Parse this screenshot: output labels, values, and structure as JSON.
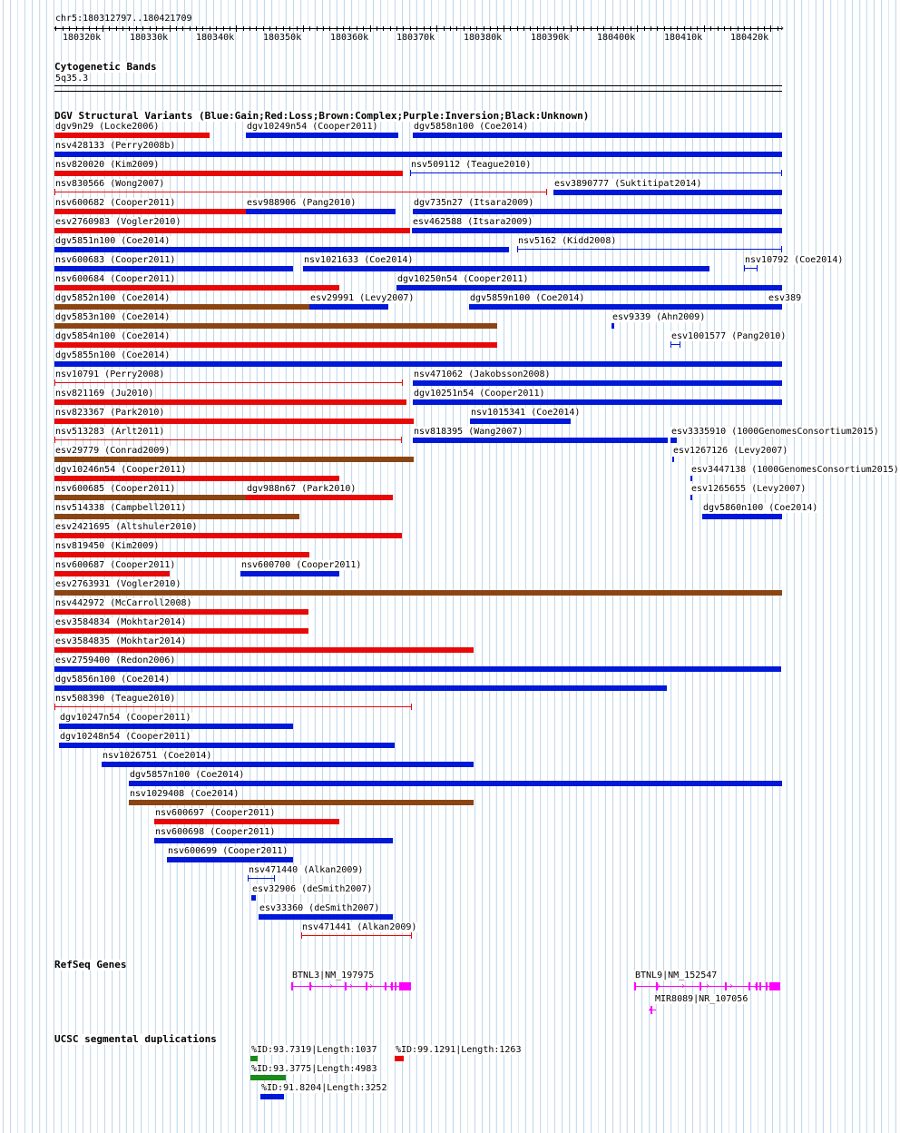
{
  "ruler": {
    "region": "chr5:180312797..180421709",
    "start": 180312797,
    "end": 180421709,
    "ticks": [
      "180320k",
      "180330k",
      "180340k",
      "180350k",
      "180360k",
      "180370k",
      "180380k",
      "180390k",
      "180400k",
      "180410k",
      "180420k"
    ]
  },
  "tracks": {
    "cytobands": {
      "title": "Cytogenetic Bands",
      "band": "5q35.3"
    },
    "dgv": {
      "title": "DGV Structural Variants (Blue:Gain;Red:Loss;Brown:Complex;Purple:Inversion;Black:Unknown)"
    },
    "refseq": {
      "title": "RefSeq Genes"
    },
    "segdups": {
      "title": "UCSC segmental duplications"
    }
  },
  "colors": {
    "gain": "#0018d8",
    "loss": "#e80808",
    "complex": "#8b4513",
    "gene": "#ff00ff",
    "sd_green": "#1a8a1a",
    "grid": "#bfd8ec"
  },
  "variants": [
    {
      "label": "dgv9n29 (Locke2006)",
      "start": 180312797,
      "end": 180336000,
      "type": "loss",
      "row": 0
    },
    {
      "label": "dgv10249n54 (Cooper2011)",
      "start": 180341500,
      "end": 180364300,
      "type": "gain",
      "row": 0
    },
    {
      "label": "dgv5858n100 (Coe2014)",
      "start": 180366500,
      "end": 180421709,
      "type": "gain",
      "row": 0
    },
    {
      "label": "nsv428133 (Perry2008b)",
      "start": 180312797,
      "end": 180421709,
      "type": "gain",
      "row": 1
    },
    {
      "label": "nsv820020 (Kim2009)",
      "start": 180312797,
      "end": 180365000,
      "type": "loss",
      "row": 2
    },
    {
      "label": "nsv509112 (Teague2010)",
      "start": 180366000,
      "end": 180421709,
      "type": "gain",
      "row": 2,
      "thin": true
    },
    {
      "label": "nsv830566 (Wong2007)",
      "start": 180312797,
      "end": 180386500,
      "type": "loss",
      "row": 3,
      "thin": true
    },
    {
      "label": "esv3890777 (Suktitipat2014)",
      "start": 180387500,
      "end": 180421709,
      "type": "gain",
      "row": 3
    },
    {
      "label": "nsv600682 (Cooper2011)",
      "start": 180312797,
      "end": 180341500,
      "type": "loss",
      "row": 4
    },
    {
      "label": "esv988906 (Pang2010)",
      "start": 180341500,
      "end": 180363800,
      "type": "gain",
      "row": 4
    },
    {
      "label": "dgv735n27 (Itsara2009)",
      "start": 180366500,
      "end": 180421709,
      "type": "gain",
      "row": 4
    },
    {
      "label": "esv2760983 (Vogler2010)",
      "start": 180312797,
      "end": 180366000,
      "type": "loss",
      "row": 5
    },
    {
      "label": "esv462588 (Itsara2009)",
      "start": 180366300,
      "end": 180421709,
      "type": "gain",
      "row": 5
    },
    {
      "label": "dgv5851n100 (Coe2014)",
      "start": 180312797,
      "end": 180380800,
      "type": "gain",
      "row": 6
    },
    {
      "label": "nsv5162 (Kidd2008)",
      "start": 180382000,
      "end": 180421709,
      "type": "gain",
      "row": 6,
      "thin": true
    },
    {
      "label": "nsv600683 (Cooper2011)",
      "start": 180312797,
      "end": 180348500,
      "type": "gain",
      "row": 7
    },
    {
      "label": "nsv1021633 (Coe2014)",
      "start": 180350000,
      "end": 180410800,
      "type": "gain",
      "row": 7
    },
    {
      "label": "nsv10792 (Coe2014)",
      "start": 180416000,
      "end": 180418000,
      "type": "gain",
      "row": 7,
      "thin": true
    },
    {
      "label": "nsv600684 (Cooper2011)",
      "start": 180312797,
      "end": 180355500,
      "type": "loss",
      "row": 8
    },
    {
      "label": "dgv10250n54 (Cooper2011)",
      "start": 180364000,
      "end": 180421709,
      "type": "gain",
      "row": 8
    },
    {
      "label": "dgv5852n100 (Coe2014)",
      "start": 180312797,
      "end": 180350900,
      "type": "complex",
      "row": 9
    },
    {
      "label": "esv29991 (Levy2007)",
      "start": 180350900,
      "end": 180362800,
      "type": "gain",
      "row": 9
    },
    {
      "label": "dgv5859n100 (Coe2014)",
      "start": 180374900,
      "end": 180421709,
      "type": "gain",
      "row": 9
    },
    {
      "label": "esv389",
      "start": 180419500,
      "end": 180421709,
      "type": "gain",
      "row": 9
    },
    {
      "label": "dgv5853n100 (Coe2014)",
      "start": 180312797,
      "end": 180379000,
      "type": "complex",
      "row": 10
    },
    {
      "label": "esv9339 (Ahn2009)",
      "start": 180396200,
      "end": 180396600,
      "type": "gain",
      "row": 10
    },
    {
      "label": "dgv5854n100 (Coe2014)",
      "start": 180312797,
      "end": 180379000,
      "type": "loss",
      "row": 11
    },
    {
      "label": "esv1001577 (Pang2010)",
      "start": 180405000,
      "end": 180406500,
      "type": "gain",
      "row": 11,
      "thin": true
    },
    {
      "label": "dgv5855n100 (Coe2014)",
      "start": 180312797,
      "end": 180421709,
      "type": "gain",
      "row": 12
    },
    {
      "label": "nsv10791 (Perry2008)",
      "start": 180312797,
      "end": 180365000,
      "type": "loss",
      "row": 13,
      "thin": true
    },
    {
      "label": "nsv471062 (Jakobsson2008)",
      "start": 180366500,
      "end": 180421709,
      "type": "gain",
      "row": 13
    },
    {
      "label": "nsv821169 (Ju2010)",
      "start": 180312797,
      "end": 180365500,
      "type": "loss",
      "row": 14
    },
    {
      "label": "dgv10251n54 (Cooper2011)",
      "start": 180366500,
      "end": 180421709,
      "type": "gain",
      "row": 14
    },
    {
      "label": "nsv823367 (Park2010)",
      "start": 180312797,
      "end": 180366600,
      "type": "loss",
      "row": 15
    },
    {
      "label": "nsv1015341 (Coe2014)",
      "start": 180375000,
      "end": 180390000,
      "type": "gain",
      "row": 15
    },
    {
      "label": "nsv513283 (Arlt2011)",
      "start": 180312797,
      "end": 180364800,
      "type": "loss",
      "row": 16,
      "thin": true
    },
    {
      "label": "nsv818395 (Wang2007)",
      "start": 180366500,
      "end": 180404600,
      "type": "gain",
      "row": 16
    },
    {
      "label": "esv3335910 (1000GenomesConsortium2015)",
      "start": 180405000,
      "end": 180406000,
      "type": "gain",
      "row": 16
    },
    {
      "label": "esv29779 (Conrad2009)",
      "start": 180312797,
      "end": 180366600,
      "type": "complex",
      "row": 17
    },
    {
      "label": "esv1267126 (Levy2007)",
      "start": 180405300,
      "end": 180405600,
      "type": "gain",
      "row": 17
    },
    {
      "label": "dgv10246n54 (Cooper2011)",
      "start": 180312797,
      "end": 180355400,
      "type": "loss",
      "row": 18
    },
    {
      "label": "esv3447138 (1000GenomesConsortium2015)",
      "start": 180408000,
      "end": 180408300,
      "type": "gain",
      "row": 18
    },
    {
      "label": "nsv600685 (Cooper2011)",
      "start": 180312797,
      "end": 180341500,
      "type": "complex",
      "row": 19
    },
    {
      "label": "dgv988n67 (Park2010)",
      "start": 180341500,
      "end": 180363500,
      "type": "loss",
      "row": 19
    },
    {
      "label": "esv1265655 (Levy2007)",
      "start": 180408000,
      "end": 180408300,
      "type": "gain",
      "row": 19
    },
    {
      "label": "nsv514338 (Campbell2011)",
      "start": 180312797,
      "end": 180349400,
      "type": "complex",
      "row": 20
    },
    {
      "label": "dgv5860n100 (Coe2014)",
      "start": 180409800,
      "end": 180421709,
      "type": "gain",
      "row": 20
    },
    {
      "label": "esv2421695 (Altshuler2010)",
      "start": 180312797,
      "end": 180364800,
      "type": "loss",
      "row": 21
    },
    {
      "label": "nsv819450 (Kim2009)",
      "start": 180312797,
      "end": 180350900,
      "type": "loss",
      "row": 22
    },
    {
      "label": "nsv600687 (Cooper2011)",
      "start": 180312797,
      "end": 180330000,
      "type": "loss",
      "row": 23
    },
    {
      "label": "nsv600700 (Cooper2011)",
      "start": 180340700,
      "end": 180355400,
      "type": "gain",
      "row": 23
    },
    {
      "label": "esv2763931 (Vogler2010)",
      "start": 180312797,
      "end": 180421709,
      "type": "complex",
      "row": 24
    },
    {
      "label": "nsv442972 (McCarroll2008)",
      "start": 180312797,
      "end": 180350800,
      "type": "loss",
      "row": 25
    },
    {
      "label": "esv3584834 (Mokhtar2014)",
      "start": 180312797,
      "end": 180350800,
      "type": "loss",
      "row": 26
    },
    {
      "label": "esv3584835 (Mokhtar2014)",
      "start": 180312797,
      "end": 180375600,
      "type": "loss",
      "row": 27
    },
    {
      "label": "esv2759400 (Redon2006)",
      "start": 180312797,
      "end": 180421600,
      "type": "gain",
      "row": 28
    },
    {
      "label": "dgv5856n100 (Coe2014)",
      "start": 180312797,
      "end": 180404400,
      "type": "gain",
      "row": 29
    },
    {
      "label": "nsv508390 (Teague2010)",
      "start": 180312797,
      "end": 180366300,
      "type": "loss",
      "row": 30,
      "thin": true
    },
    {
      "label": "dgv10247n54 (Cooper2011)",
      "start": 180313500,
      "end": 180348500,
      "type": "gain",
      "row": 31
    },
    {
      "label": "dgv10248n54 (Cooper2011)",
      "start": 180313500,
      "end": 180363700,
      "type": "gain",
      "row": 32
    },
    {
      "label": "nsv1026751 (Coe2014)",
      "start": 180319800,
      "end": 180375600,
      "type": "gain",
      "row": 33
    },
    {
      "label": "dgv5857n100 (Coe2014)",
      "start": 180323900,
      "end": 180421709,
      "type": "gain",
      "row": 34
    },
    {
      "label": "nsv1029408 (Coe2014)",
      "start": 180323900,
      "end": 180375600,
      "type": "complex",
      "row": 35
    },
    {
      "label": "nsv600697 (Cooper2011)",
      "start": 180327700,
      "end": 180355400,
      "type": "loss",
      "row": 36
    },
    {
      "label": "nsv600698 (Cooper2011)",
      "start": 180327700,
      "end": 180363500,
      "type": "gain",
      "row": 37
    },
    {
      "label": "nsv600699 (Cooper2011)",
      "start": 180329700,
      "end": 180348500,
      "type": "gain",
      "row": 38
    },
    {
      "label": "nsv471440 (Alkan2009)",
      "start": 180341700,
      "end": 180345800,
      "type": "gain",
      "row": 39,
      "thin": true
    },
    {
      "label": "esv32906 (deSmith2007)",
      "start": 180342300,
      "end": 180342900,
      "type": "gain",
      "row": 40
    },
    {
      "label": "esv33360 (deSmith2007)",
      "start": 180343400,
      "end": 180363500,
      "type": "gain",
      "row": 41
    },
    {
      "label": "nsv471441 (Alkan2009)",
      "start": 180349800,
      "end": 180366300,
      "type": "loss",
      "row": 42,
      "thin": true
    }
  ],
  "genes": [
    {
      "label": "BTNL3|NM_197975",
      "start": 180348200,
      "end": 180366200,
      "row": 0
    },
    {
      "label": "BTNL9|NM_152547",
      "start": 180399600,
      "end": 180421500,
      "row": 0
    },
    {
      "label": "MIR8089|NR_107056",
      "start": 180401700,
      "end": 180402900,
      "row": 1
    }
  ],
  "segdups": [
    {
      "label": "%ID:93.7319|Length:1037",
      "start": 180342100,
      "end": 180343200,
      "color": "green",
      "row": 0
    },
    {
      "label": "%ID:99.1291|Length:1263",
      "start": 180363700,
      "end": 180365100,
      "color": "red",
      "row": 0
    },
    {
      "label": "%ID:93.3775|Length:4983",
      "start": 180342100,
      "end": 180347400,
      "color": "green",
      "row": 1
    },
    {
      "label": "%ID:91.8204|Length:3252",
      "start": 180343600,
      "end": 180347200,
      "color": "blue",
      "row": 2
    }
  ]
}
